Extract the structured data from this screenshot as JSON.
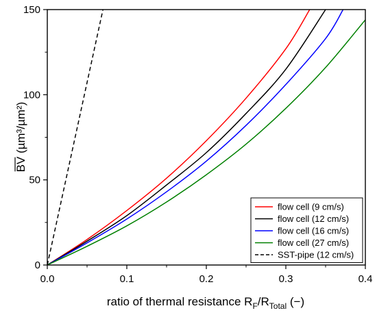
{
  "chart_data": {
    "type": "line",
    "xlabel_main": "ratio of thermal resistance R",
    "xlabel_sub1": "F",
    "xlabel_mid": "/R",
    "xlabel_sub2": "Total",
    "xlabel_tail": " (−)",
    "ylabel_main": "BV",
    "ylabel_unit": " (µm³/µm²)",
    "xlim": [
      0,
      0.4
    ],
    "ylim": [
      0,
      150
    ],
    "xticks": [
      0.0,
      0.1,
      0.2,
      0.3,
      0.4
    ],
    "xtick_labels": [
      "0.0",
      "0.1",
      "0.2",
      "0.3",
      "0.4"
    ],
    "yticks": [
      0,
      50,
      100,
      150
    ],
    "ytick_labels": [
      "0",
      "50",
      "100",
      "150"
    ],
    "grid": false,
    "legend_position": "bottom-right",
    "series": [
      {
        "name": "flow cell (9 cm/s)",
        "color": "#ff0000",
        "dash": "solid",
        "x": [
          0,
          0.05,
          0.1,
          0.15,
          0.2,
          0.25,
          0.3,
          0.33
        ],
        "y": [
          0,
          15,
          32,
          51,
          73,
          98,
          127,
          150
        ]
      },
      {
        "name": "flow cell (12 cm/s)",
        "color": "#000000",
        "dash": "solid",
        "x": [
          0,
          0.05,
          0.1,
          0.15,
          0.2,
          0.25,
          0.3,
          0.35
        ],
        "y": [
          0,
          14,
          29,
          47,
          66,
          89,
          115,
          150
        ]
      },
      {
        "name": "flow cell (16 cm/s)",
        "color": "#0000ff",
        "dash": "solid",
        "x": [
          0,
          0.05,
          0.1,
          0.15,
          0.2,
          0.25,
          0.3,
          0.35,
          0.372
        ],
        "y": [
          0,
          13,
          27,
          43,
          61,
          82,
          106,
          133,
          150
        ]
      },
      {
        "name": "flow cell (27 cm/s)",
        "color": "#008000",
        "dash": "solid",
        "x": [
          0,
          0.05,
          0.1,
          0.15,
          0.2,
          0.25,
          0.3,
          0.35,
          0.4
        ],
        "y": [
          0,
          11,
          23,
          37,
          53,
          71,
          92,
          116,
          144
        ]
      },
      {
        "name": "SST-pipe (12 cm/s)",
        "color": "#000000",
        "dash": "dashed",
        "x": [
          0,
          0.07
        ],
        "y": [
          0,
          150
        ]
      }
    ]
  }
}
